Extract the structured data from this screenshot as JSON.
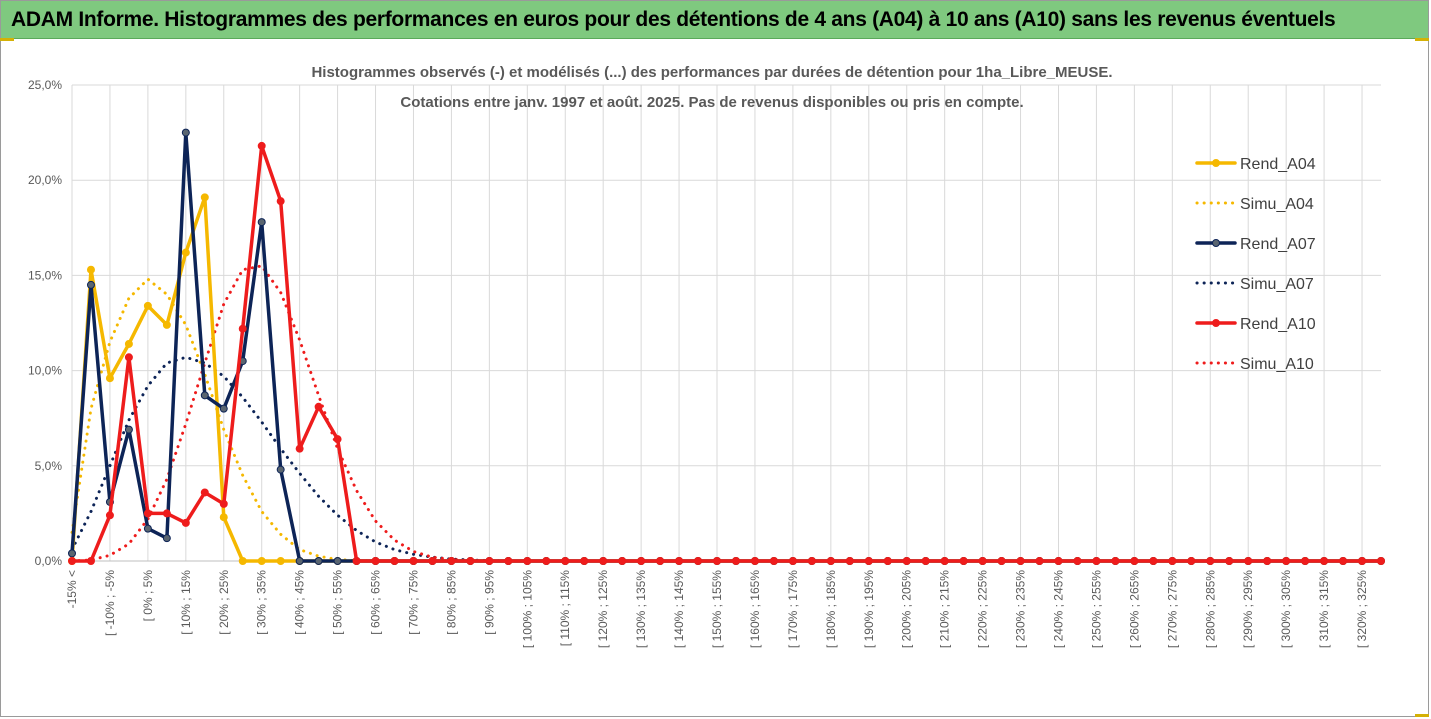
{
  "header": {
    "title": "ADAM Informe. Histogrammes des performances en euros pour des détentions de 4 ans (A04) à 10 ans (A10) sans les revenus éventuels"
  },
  "colors": {
    "header_bg": "#7fc97f",
    "accent": "#d4b106",
    "gridline": "#d9d9d9",
    "axis_text": "#595959"
  },
  "chart_data": {
    "type": "line",
    "subtitle_lines": [
      "Histogrammes observés (-) et modélisés (...)  des performances par durées de détention pour 1ha_Libre_MEUSE.",
      "Cotations entre janv. 1997 et août. 2025. Pas de revenus disponibles ou pris en compte."
    ],
    "ylim": [
      0,
      25
    ],
    "yticks": [
      "0,0%",
      "5,0%",
      "10,0%",
      "15,0%",
      "20,0%",
      "25,0%"
    ],
    "ytick_values": [
      0,
      5,
      10,
      15,
      20,
      25
    ],
    "grid": "vertical-and-horizontal",
    "legend_position": "right",
    "category_count": 70,
    "xtick_labels": [
      "-15% <",
      "[ -10% ; -5%",
      "[ 0% ; 5%",
      "[ 10% ; 15%",
      "[ 20% ; 25%",
      "[ 30% ; 35%",
      "[ 40% ; 45%",
      "[ 50% ; 55%",
      "[ 60% ; 65%",
      "[ 70% ; 75%",
      "[ 80% ; 85%",
      "[ 90% ; 95%",
      "[ 100% ; 105%",
      "[ 110% ; 115%",
      "[ 120% ; 125%",
      "[ 130% ; 135%",
      "[ 140% ; 145%",
      "[ 150% ; 155%",
      "[ 160% ; 165%",
      "[ 170% ; 175%",
      "[ 180% ; 185%",
      "[ 190% ; 195%",
      "[ 200% ; 205%",
      "[ 210% ; 215%",
      "[ 220% ; 225%",
      "[ 230% ; 235%",
      "[ 240% ; 245%",
      "[ 250% ; 255%",
      "[ 260% ; 265%",
      "[ 270% ; 275%",
      "[ 280% ; 285%",
      "[ 290% ; 295%",
      "[ 300% ; 305%",
      "[ 310% ; 315%",
      "[ 320% ; 325%"
    ],
    "series": [
      {
        "name": "Rend_A04",
        "color": "#f5b800",
        "style": "solid",
        "markers": true,
        "values": [
          0,
          15.3,
          9.6,
          11.4,
          13.4,
          12.4,
          16.2,
          19.1,
          2.3,
          0,
          0,
          0,
          0,
          0,
          0,
          0,
          0,
          0,
          0,
          0,
          0,
          0,
          0,
          0,
          0,
          0,
          0,
          0,
          0,
          0,
          0,
          0,
          0,
          0,
          0,
          0,
          0,
          0,
          0,
          0,
          0,
          0,
          0,
          0,
          0,
          0,
          0,
          0,
          0,
          0,
          0,
          0,
          0,
          0,
          0,
          0,
          0,
          0,
          0,
          0,
          0,
          0,
          0,
          0,
          0,
          0,
          0,
          0,
          0,
          0
        ]
      },
      {
        "name": "Simu_A04",
        "color": "#f5b800",
        "style": "dotted",
        "markers": false,
        "values": [
          1.5,
          8.0,
          11.5,
          13.8,
          14.8,
          14.0,
          12.4,
          9.8,
          6.9,
          4.5,
          2.6,
          1.4,
          0.6,
          0.25,
          0.08,
          0.02,
          0,
          0,
          0,
          0,
          0,
          0,
          0,
          0,
          0,
          0,
          0,
          0,
          0,
          0,
          0,
          0,
          0,
          0,
          0,
          0,
          0,
          0,
          0,
          0,
          0,
          0,
          0,
          0,
          0,
          0,
          0,
          0,
          0,
          0,
          0,
          0,
          0,
          0,
          0,
          0,
          0,
          0,
          0,
          0,
          0,
          0,
          0,
          0,
          0,
          0,
          0,
          0,
          0,
          0
        ]
      },
      {
        "name": "Rend_A07",
        "color": "#0d2457",
        "style": "solid",
        "markers": true,
        "values": [
          0.4,
          14.5,
          3.1,
          6.9,
          1.7,
          1.2,
          22.5,
          8.7,
          8.0,
          10.5,
          17.8,
          4.8,
          0,
          0,
          0,
          0,
          0,
          0,
          0,
          0,
          0,
          0,
          0,
          0,
          0,
          0,
          0,
          0,
          0,
          0,
          0,
          0,
          0,
          0,
          0,
          0,
          0,
          0,
          0,
          0,
          0,
          0,
          0,
          0,
          0,
          0,
          0,
          0,
          0,
          0,
          0,
          0,
          0,
          0,
          0,
          0,
          0,
          0,
          0,
          0,
          0,
          0,
          0,
          0,
          0,
          0,
          0,
          0,
          0,
          0
        ]
      },
      {
        "name": "Simu_A07",
        "color": "#0d2457",
        "style": "dotted",
        "markers": false,
        "values": [
          0.6,
          2.6,
          5.0,
          7.4,
          9.2,
          10.4,
          10.7,
          10.4,
          9.7,
          8.6,
          7.3,
          5.9,
          4.6,
          3.4,
          2.4,
          1.6,
          1.0,
          0.6,
          0.35,
          0.2,
          0.1,
          0.05,
          0.02,
          0,
          0,
          0,
          0,
          0,
          0,
          0,
          0,
          0,
          0,
          0,
          0,
          0,
          0,
          0,
          0,
          0,
          0,
          0,
          0,
          0,
          0,
          0,
          0,
          0,
          0,
          0,
          0,
          0,
          0,
          0,
          0,
          0,
          0,
          0,
          0,
          0,
          0,
          0,
          0,
          0,
          0,
          0,
          0,
          0,
          0,
          0
        ]
      },
      {
        "name": "Rend_A10",
        "color": "#ee1c1c",
        "style": "solid",
        "markers": true,
        "values": [
          0,
          0,
          2.4,
          10.7,
          2.5,
          2.5,
          2.0,
          3.6,
          3.0,
          12.2,
          21.8,
          18.9,
          5.9,
          8.1,
          6.4,
          0,
          0,
          0,
          0,
          0,
          0,
          0,
          0,
          0,
          0,
          0,
          0,
          0,
          0,
          0,
          0,
          0,
          0,
          0,
          0,
          0,
          0,
          0,
          0,
          0,
          0,
          0,
          0,
          0,
          0,
          0,
          0,
          0,
          0,
          0,
          0,
          0,
          0,
          0,
          0,
          0,
          0,
          0,
          0,
          0,
          0,
          0,
          0,
          0,
          0,
          0,
          0,
          0,
          0,
          0
        ]
      },
      {
        "name": "Simu_A10",
        "color": "#ee1c1c",
        "style": "dotted",
        "markers": false,
        "values": [
          0,
          0.05,
          0.3,
          0.9,
          2.2,
          4.3,
          7.2,
          10.4,
          13.5,
          15.3,
          15.5,
          14.1,
          11.6,
          8.7,
          5.9,
          3.7,
          2.1,
          1.1,
          0.5,
          0.2,
          0.08,
          0.02,
          0,
          0,
          0,
          0,
          0,
          0,
          0,
          0,
          0,
          0,
          0,
          0,
          0,
          0,
          0,
          0,
          0,
          0,
          0,
          0,
          0,
          0,
          0,
          0,
          0,
          0,
          0,
          0,
          0,
          0,
          0,
          0,
          0,
          0,
          0,
          0,
          0,
          0,
          0,
          0,
          0,
          0,
          0,
          0,
          0,
          0,
          0,
          0
        ]
      }
    ]
  }
}
